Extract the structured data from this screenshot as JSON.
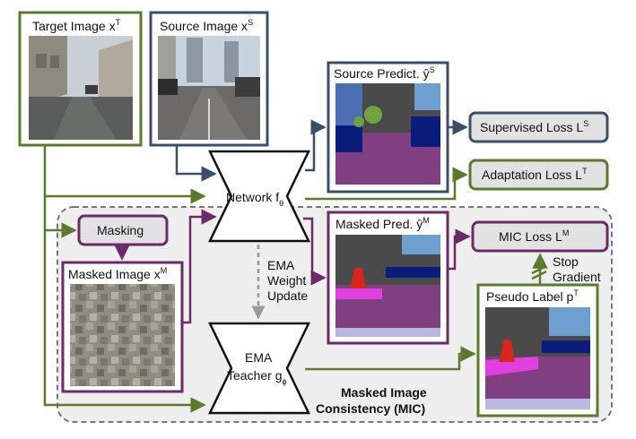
{
  "colors": {
    "green": "#5a7a2e",
    "purple": "#6b2a6a",
    "navy": "#3b5068",
    "mic_region_fill": "#eeeeee",
    "mic_region_border": "#777777",
    "pill_fill": "#e2e2e2",
    "ema_arrow": "#999999"
  },
  "nodes": {
    "target_image": {
      "label": "Target Image x",
      "sup": "T"
    },
    "source_image": {
      "label": "Source Image x",
      "sup": "S"
    },
    "source_pred": {
      "label": "Source Predict. ŷ",
      "sup": "S"
    },
    "supervised_loss": {
      "label": "Supervised Loss L",
      "sup": "S"
    },
    "adaptation_loss": {
      "label": "Adaptation Loss L",
      "sup": "T"
    },
    "network": {
      "label": "Network f",
      "sub": "θ"
    },
    "masking": {
      "label": "Masking"
    },
    "masked_image": {
      "label": "Masked Image x",
      "sup": "M"
    },
    "masked_pred": {
      "label": "Masked Pred. ŷ",
      "sup": "M"
    },
    "mic_loss": {
      "label": "MIC Loss L",
      "sup": "M"
    },
    "stop_gradient": {
      "line1": "Stop",
      "line2": "Gradient"
    },
    "pseudo_label": {
      "label": "Pseudo Label p",
      "sup": "T"
    },
    "ema_update": {
      "line1": "EMA",
      "line2": "Weight",
      "line3": "Update"
    },
    "ema_teacher": {
      "line1": "EMA",
      "line2": "Teacher g",
      "sub": "ϕ"
    },
    "mic_region": {
      "line1": "Masked Image",
      "line2": "Consistency (MIC)"
    }
  }
}
